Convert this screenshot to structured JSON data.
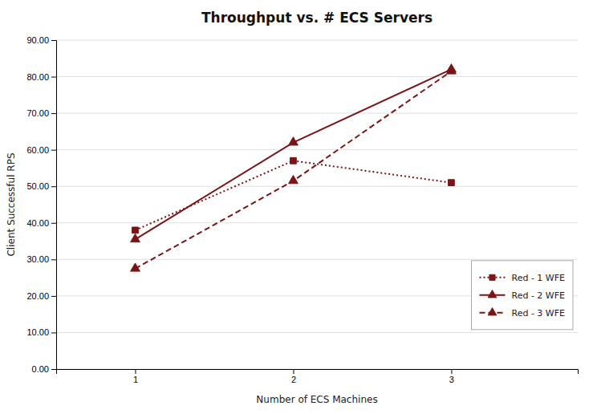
{
  "chart_data": {
    "type": "line",
    "title": "Throughput vs. # ECS Servers",
    "xlabel": "Number of ECS Machines",
    "ylabel": "Client Successful RPS",
    "x": [
      1,
      2,
      3
    ],
    "series": [
      {
        "name": "Red - 1 WFE",
        "color": "#7B1515",
        "line_style": "dotted",
        "marker": "square",
        "values": [
          38.0,
          57.0,
          51.0
        ]
      },
      {
        "name": "Red - 2 WFE",
        "color": "#7B1515",
        "line_style": "solid",
        "marker": "triangle",
        "values": [
          35.5,
          62.0,
          82.0
        ]
      },
      {
        "name": "Red - 3 WFE",
        "color": "#7B1515",
        "line_style": "dashed",
        "marker": "triangle",
        "values": [
          27.5,
          51.5,
          81.5
        ]
      }
    ],
    "xlim": [
      0.5,
      3.8
    ],
    "ylim": [
      0.0,
      90.0
    ],
    "xticks": [
      1,
      2,
      3
    ],
    "yticks": [
      {
        "value": 0,
        "label": "0.00"
      },
      {
        "value": 10,
        "label": "10.00"
      },
      {
        "value": 20,
        "label": "20.00"
      },
      {
        "value": 30,
        "label": "30.00"
      },
      {
        "value": 40,
        "label": "40.00"
      },
      {
        "value": 50,
        "label": "50.00"
      },
      {
        "value": 60,
        "label": "60.00"
      },
      {
        "value": 70,
        "label": "70.00"
      },
      {
        "value": 80,
        "label": "80.00"
      },
      {
        "value": 90,
        "label": "90.00"
      }
    ],
    "grid": "y",
    "legend": "lower right"
  }
}
